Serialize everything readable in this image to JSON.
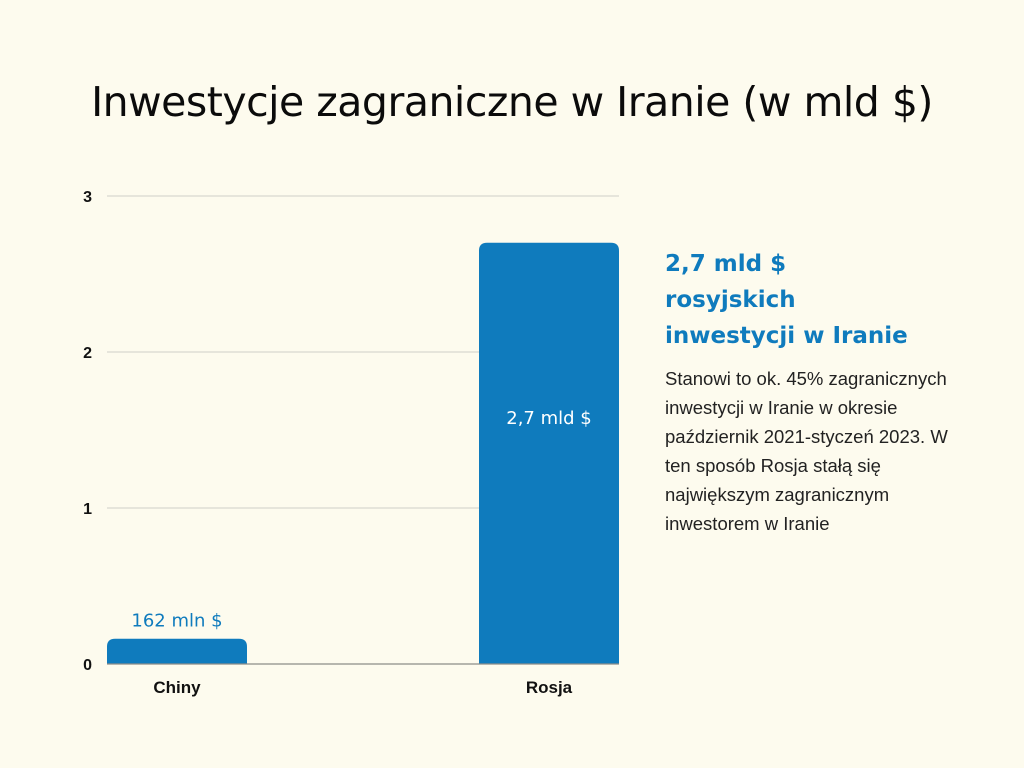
{
  "header": {
    "title": "Inwestycje zagraniczne w Iranie (w mld $)"
  },
  "chart_data": {
    "type": "bar",
    "title": "Inwestycje zagraniczne w Iranie (w mld $)",
    "categories": [
      "Chiny",
      "Rosja"
    ],
    "values": [
      0.162,
      2.7
    ],
    "data_labels": [
      "162 mln $",
      "2,7 mld $"
    ],
    "yticks": [
      "0",
      "1",
      "2",
      "3"
    ],
    "ylim": [
      0,
      3
    ],
    "grid": true,
    "bar_color": "#0f7bbd",
    "xlabel": "",
    "ylabel": ""
  },
  "side_panel": {
    "heading_lines": [
      "2,7 mld $",
      "rosyjskich",
      "inwestycji w Iranie"
    ],
    "body": "Stanowi to ok. 45% zagranicznych inwestycji w Iranie w okresie październik 2021-styczeń 2023. W ten sposób Rosja stałą się największym zagranicznym inwestorem w Iranie"
  },
  "colors": {
    "background": "#fdfbee",
    "accent": "#0f7bbd",
    "text": "#111111"
  }
}
